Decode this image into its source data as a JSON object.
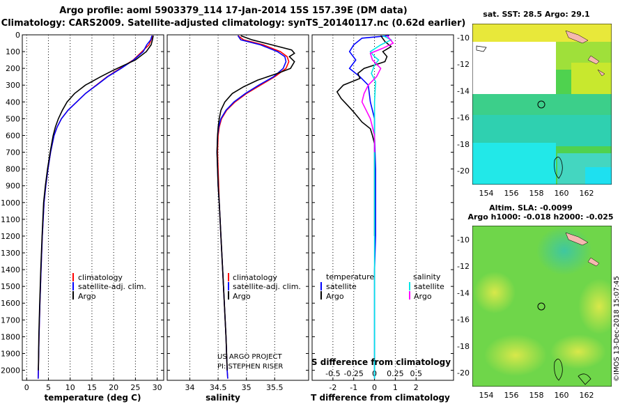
{
  "header": {
    "title_line1": "Argo profile: aoml 5903379_114 17-Jan-2014 15S 157.39E (DM data)",
    "title_line2": "Climatology: CARS2009. Satellite-adjusted climatology: synTS_20140117.nc (0.62d earlier)"
  },
  "colors": {
    "climatology": "#ff0000",
    "satellite_adj": "#0000ff",
    "argo": "#000000",
    "satellite_salinity": "#00e5e5",
    "argo_salinity": "#ff00ff"
  },
  "depth_axis": {
    "ticks": [
      0,
      100,
      200,
      300,
      400,
      500,
      600,
      700,
      800,
      900,
      1000,
      1100,
      1200,
      1300,
      1400,
      1500,
      1600,
      1700,
      1800,
      1900,
      2000
    ],
    "range": [
      0,
      2060
    ]
  },
  "chart_data": [
    {
      "id": "temperature",
      "type": "line",
      "xlabel": "temperature (deg C)",
      "xlim": [
        -1,
        31.5
      ],
      "xticks": [
        0,
        5,
        10,
        15,
        20,
        25,
        30
      ],
      "legend": [
        "climatology",
        "satellite-adj. clim.",
        "Argo"
      ],
      "series": [
        {
          "name": "climatology",
          "color": "#ff0000",
          "points": [
            [
              29.0,
              5
            ],
            [
              28.6,
              30
            ],
            [
              28.1,
              60
            ],
            [
              26.5,
              100
            ],
            [
              24.5,
              150
            ],
            [
              21.5,
              200
            ],
            [
              18.5,
              250
            ],
            [
              16.0,
              300
            ],
            [
              13.5,
              350
            ],
            [
              11.5,
              400
            ],
            [
              9.5,
              450
            ],
            [
              8.0,
              500
            ],
            [
              7.0,
              550
            ],
            [
              6.3,
              600
            ],
            [
              5.5,
              700
            ],
            [
              4.9,
              800
            ],
            [
              4.4,
              900
            ],
            [
              4.0,
              1000
            ],
            [
              3.6,
              1200
            ],
            [
              3.3,
              1400
            ],
            [
              3.05,
              1600
            ],
            [
              2.85,
              1800
            ],
            [
              2.7,
              2000
            ],
            [
              2.65,
              2050
            ]
          ]
        },
        {
          "name": "satellite-adj. clim.",
          "color": "#0000ff",
          "points": [
            [
              28.8,
              5
            ],
            [
              28.5,
              30
            ],
            [
              27.6,
              60
            ],
            [
              26.8,
              100
            ],
            [
              24.6,
              150
            ],
            [
              21.7,
              200
            ],
            [
              18.6,
              250
            ],
            [
              16.1,
              300
            ],
            [
              13.5,
              350
            ],
            [
              11.5,
              400
            ],
            [
              9.5,
              450
            ],
            [
              8.0,
              500
            ],
            [
              7.0,
              550
            ],
            [
              6.3,
              600
            ],
            [
              5.5,
              700
            ],
            [
              4.9,
              800
            ],
            [
              4.4,
              900
            ],
            [
              4.0,
              1000
            ],
            [
              3.6,
              1200
            ],
            [
              3.3,
              1400
            ],
            [
              3.05,
              1600
            ],
            [
              2.85,
              1800
            ],
            [
              2.7,
              2000
            ],
            [
              2.65,
              2050
            ]
          ]
        },
        {
          "name": "Argo",
          "color": "#000000",
          "points": [
            [
              29.1,
              5
            ],
            [
              28.9,
              30
            ],
            [
              28.6,
              60
            ],
            [
              27.5,
              100
            ],
            [
              25.0,
              150
            ],
            [
              22.5,
              180
            ],
            [
              20.0,
              210
            ],
            [
              17.0,
              250
            ],
            [
              13.5,
              300
            ],
            [
              11.0,
              350
            ],
            [
              9.3,
              400
            ],
            [
              8.2,
              450
            ],
            [
              7.3,
              500
            ],
            [
              6.6,
              550
            ],
            [
              6.1,
              600
            ],
            [
              5.4,
              700
            ],
            [
              4.8,
              800
            ],
            [
              4.3,
              900
            ],
            [
              3.9,
              1000
            ],
            [
              3.55,
              1200
            ],
            [
              3.25,
              1400
            ],
            [
              3.0,
              1600
            ],
            [
              2.8,
              1800
            ],
            [
              2.7,
              2000
            ]
          ]
        }
      ]
    },
    {
      "id": "salinity",
      "type": "line",
      "xlabel": "salinity",
      "xlim": [
        33.6,
        36.1
      ],
      "xticks": [
        34,
        34.5,
        35,
        35.5
      ],
      "legend": [
        "climatology",
        "satellite-adj. clim.",
        "Argo"
      ],
      "series": [
        {
          "name": "climatology",
          "color": "#ff0000",
          "points": [
            [
              34.85,
              5
            ],
            [
              34.95,
              30
            ],
            [
              35.3,
              60
            ],
            [
              35.6,
              100
            ],
            [
              35.72,
              130
            ],
            [
              35.75,
              160
            ],
            [
              35.7,
              200
            ],
            [
              35.5,
              250
            ],
            [
              35.25,
              300
            ],
            [
              35.0,
              350
            ],
            [
              34.8,
              400
            ],
            [
              34.65,
              450
            ],
            [
              34.56,
              500
            ],
            [
              34.52,
              550
            ],
            [
              34.5,
              600
            ],
            [
              34.49,
              700
            ],
            [
              34.5,
              800
            ],
            [
              34.51,
              900
            ],
            [
              34.52,
              1000
            ],
            [
              34.55,
              1200
            ],
            [
              34.58,
              1400
            ],
            [
              34.61,
              1600
            ],
            [
              34.64,
              1800
            ],
            [
              34.66,
              2000
            ],
            [
              34.67,
              2050
            ]
          ]
        },
        {
          "name": "satellite-adj. clim.",
          "color": "#0000ff",
          "points": [
            [
              34.85,
              5
            ],
            [
              34.9,
              30
            ],
            [
              35.25,
              60
            ],
            [
              35.55,
              100
            ],
            [
              35.68,
              130
            ],
            [
              35.7,
              160
            ],
            [
              35.65,
              200
            ],
            [
              35.48,
              250
            ],
            [
              35.22,
              300
            ],
            [
              34.98,
              350
            ],
            [
              34.78,
              400
            ],
            [
              34.64,
              450
            ],
            [
              34.55,
              500
            ],
            [
              34.51,
              550
            ],
            [
              34.49,
              600
            ],
            [
              34.48,
              700
            ],
            [
              34.49,
              800
            ],
            [
              34.5,
              900
            ],
            [
              34.52,
              1000
            ],
            [
              34.55,
              1200
            ],
            [
              34.58,
              1400
            ],
            [
              34.61,
              1600
            ],
            [
              34.64,
              1800
            ],
            [
              34.66,
              2000
            ],
            [
              34.67,
              2050
            ]
          ]
        },
        {
          "name": "Argo",
          "color": "#000000",
          "points": [
            [
              34.9,
              5
            ],
            [
              35.1,
              30
            ],
            [
              35.45,
              60
            ],
            [
              35.8,
              90
            ],
            [
              35.85,
              110
            ],
            [
              35.76,
              130
            ],
            [
              35.85,
              160
            ],
            [
              35.78,
              200
            ],
            [
              35.55,
              230
            ],
            [
              35.2,
              270
            ],
            [
              34.95,
              310
            ],
            [
              34.75,
              350
            ],
            [
              34.62,
              400
            ],
            [
              34.55,
              450
            ],
            [
              34.52,
              500
            ],
            [
              34.5,
              550
            ],
            [
              34.49,
              600
            ],
            [
              34.48,
              700
            ],
            [
              34.49,
              800
            ],
            [
              34.5,
              900
            ],
            [
              34.52,
              1000
            ],
            [
              34.55,
              1200
            ],
            [
              34.58,
              1400
            ],
            [
              34.61,
              1600
            ],
            [
              34.64,
              1800
            ],
            [
              34.66,
              2000
            ]
          ]
        }
      ],
      "annotations": [
        "US ARGO PROJECT",
        "PI: STEPHEN RISER"
      ]
    },
    {
      "id": "difference",
      "type": "line",
      "xlabel": "T difference from climatology",
      "xlabel_top": "S difference from climatology",
      "xlim": [
        -3,
        3.8
      ],
      "xticks": [
        -2,
        -1,
        0,
        1,
        2
      ],
      "xticks_s": [
        "-0.5",
        "-0.25",
        "0",
        "0.25",
        "0.5"
      ],
      "legend_left_heading": "temperature",
      "legend_right_heading": "salinity",
      "legend": [
        "satellite",
        "Argo",
        "satellite",
        "Argo"
      ],
      "series": [
        {
          "name": "T satellite",
          "color": "#0000ff",
          "points": [
            [
              0.7,
              5
            ],
            [
              -0.6,
              20
            ],
            [
              -1.0,
              60
            ],
            [
              -1.2,
              100
            ],
            [
              -0.9,
              150
            ],
            [
              -1.2,
              200
            ],
            [
              -0.7,
              250
            ],
            [
              -0.3,
              300
            ],
            [
              -0.2,
              400
            ],
            [
              0.0,
              500
            ],
            [
              0.0,
              600
            ],
            [
              0.05,
              800
            ],
            [
              0.05,
              1000
            ],
            [
              0.05,
              1200
            ],
            [
              0.0,
              1400
            ],
            [
              0.0,
              1600
            ],
            [
              0.0,
              1800
            ],
            [
              0.0,
              2000
            ],
            [
              0.0,
              2050
            ]
          ]
        },
        {
          "name": "T Argo",
          "color": "#000000",
          "points": [
            [
              0.3,
              5
            ],
            [
              0.5,
              40
            ],
            [
              0.8,
              70
            ],
            [
              0.4,
              100
            ],
            [
              0.6,
              130
            ],
            [
              0.5,
              160
            ],
            [
              -0.5,
              200
            ],
            [
              -0.8,
              230
            ],
            [
              -0.7,
              260
            ],
            [
              -1.5,
              300
            ],
            [
              -1.8,
              340
            ],
            [
              -1.6,
              380
            ],
            [
              -1.3,
              420
            ],
            [
              -1.0,
              460
            ],
            [
              -0.6,
              520
            ],
            [
              -0.2,
              560
            ],
            [
              -0.1,
              600
            ],
            [
              0.0,
              650
            ],
            [
              0.0,
              800
            ],
            [
              0.0,
              1000
            ],
            [
              0.0,
              1200
            ]
          ]
        },
        {
          "name": "S satellite",
          "color": "#00e5e5",
          "points": [
            [
              0.4,
              5
            ],
            [
              0.8,
              30
            ],
            [
              0.3,
              60
            ],
            [
              -0.2,
              100
            ],
            [
              0.0,
              130
            ],
            [
              0.2,
              150
            ],
            [
              0.0,
              180
            ],
            [
              -0.15,
              230
            ],
            [
              0.05,
              280
            ],
            [
              0.0,
              400
            ],
            [
              0.0,
              600
            ],
            [
              0.0,
              1000
            ],
            [
              0.0,
              1400
            ],
            [
              0.0,
              2000
            ],
            [
              0.0,
              2050
            ]
          ]
        },
        {
          "name": "S Argo",
          "color": "#ff00ff",
          "points": [
            [
              0.6,
              5
            ],
            [
              0.7,
              20
            ],
            [
              0.9,
              50
            ],
            [
              0.4,
              80
            ],
            [
              -0.2,
              110
            ],
            [
              -0.1,
              150
            ],
            [
              0.3,
              200
            ],
            [
              0.1,
              250
            ],
            [
              -0.3,
              300
            ],
            [
              -0.5,
              350
            ],
            [
              -0.6,
              400
            ],
            [
              -0.4,
              450
            ],
            [
              -0.2,
              500
            ],
            [
              -0.1,
              550
            ],
            [
              0.0,
              600
            ],
            [
              0.0,
              700
            ]
          ]
        }
      ]
    }
  ],
  "maps": {
    "sst": {
      "title": "sat. SST: 28.5 Argo: 29.1",
      "lat_ticks": [
        "-10",
        "-12",
        "-14",
        "-16",
        "-18",
        "-20"
      ],
      "lon_ticks": [
        "154",
        "156",
        "158",
        "160",
        "162"
      ]
    },
    "sla": {
      "title_line1": "Altim. SLA: -0.0099",
      "title_line2": "Argo h1000: -0.018 h2000: -0.025",
      "lat_ticks": [
        "-10",
        "-12",
        "-14",
        "-16",
        "-18",
        "-20"
      ],
      "lon_ticks": [
        "154",
        "156",
        "158",
        "160",
        "162"
      ]
    }
  },
  "credit": "©IMOS 13-Dec-2018 15:07:45"
}
